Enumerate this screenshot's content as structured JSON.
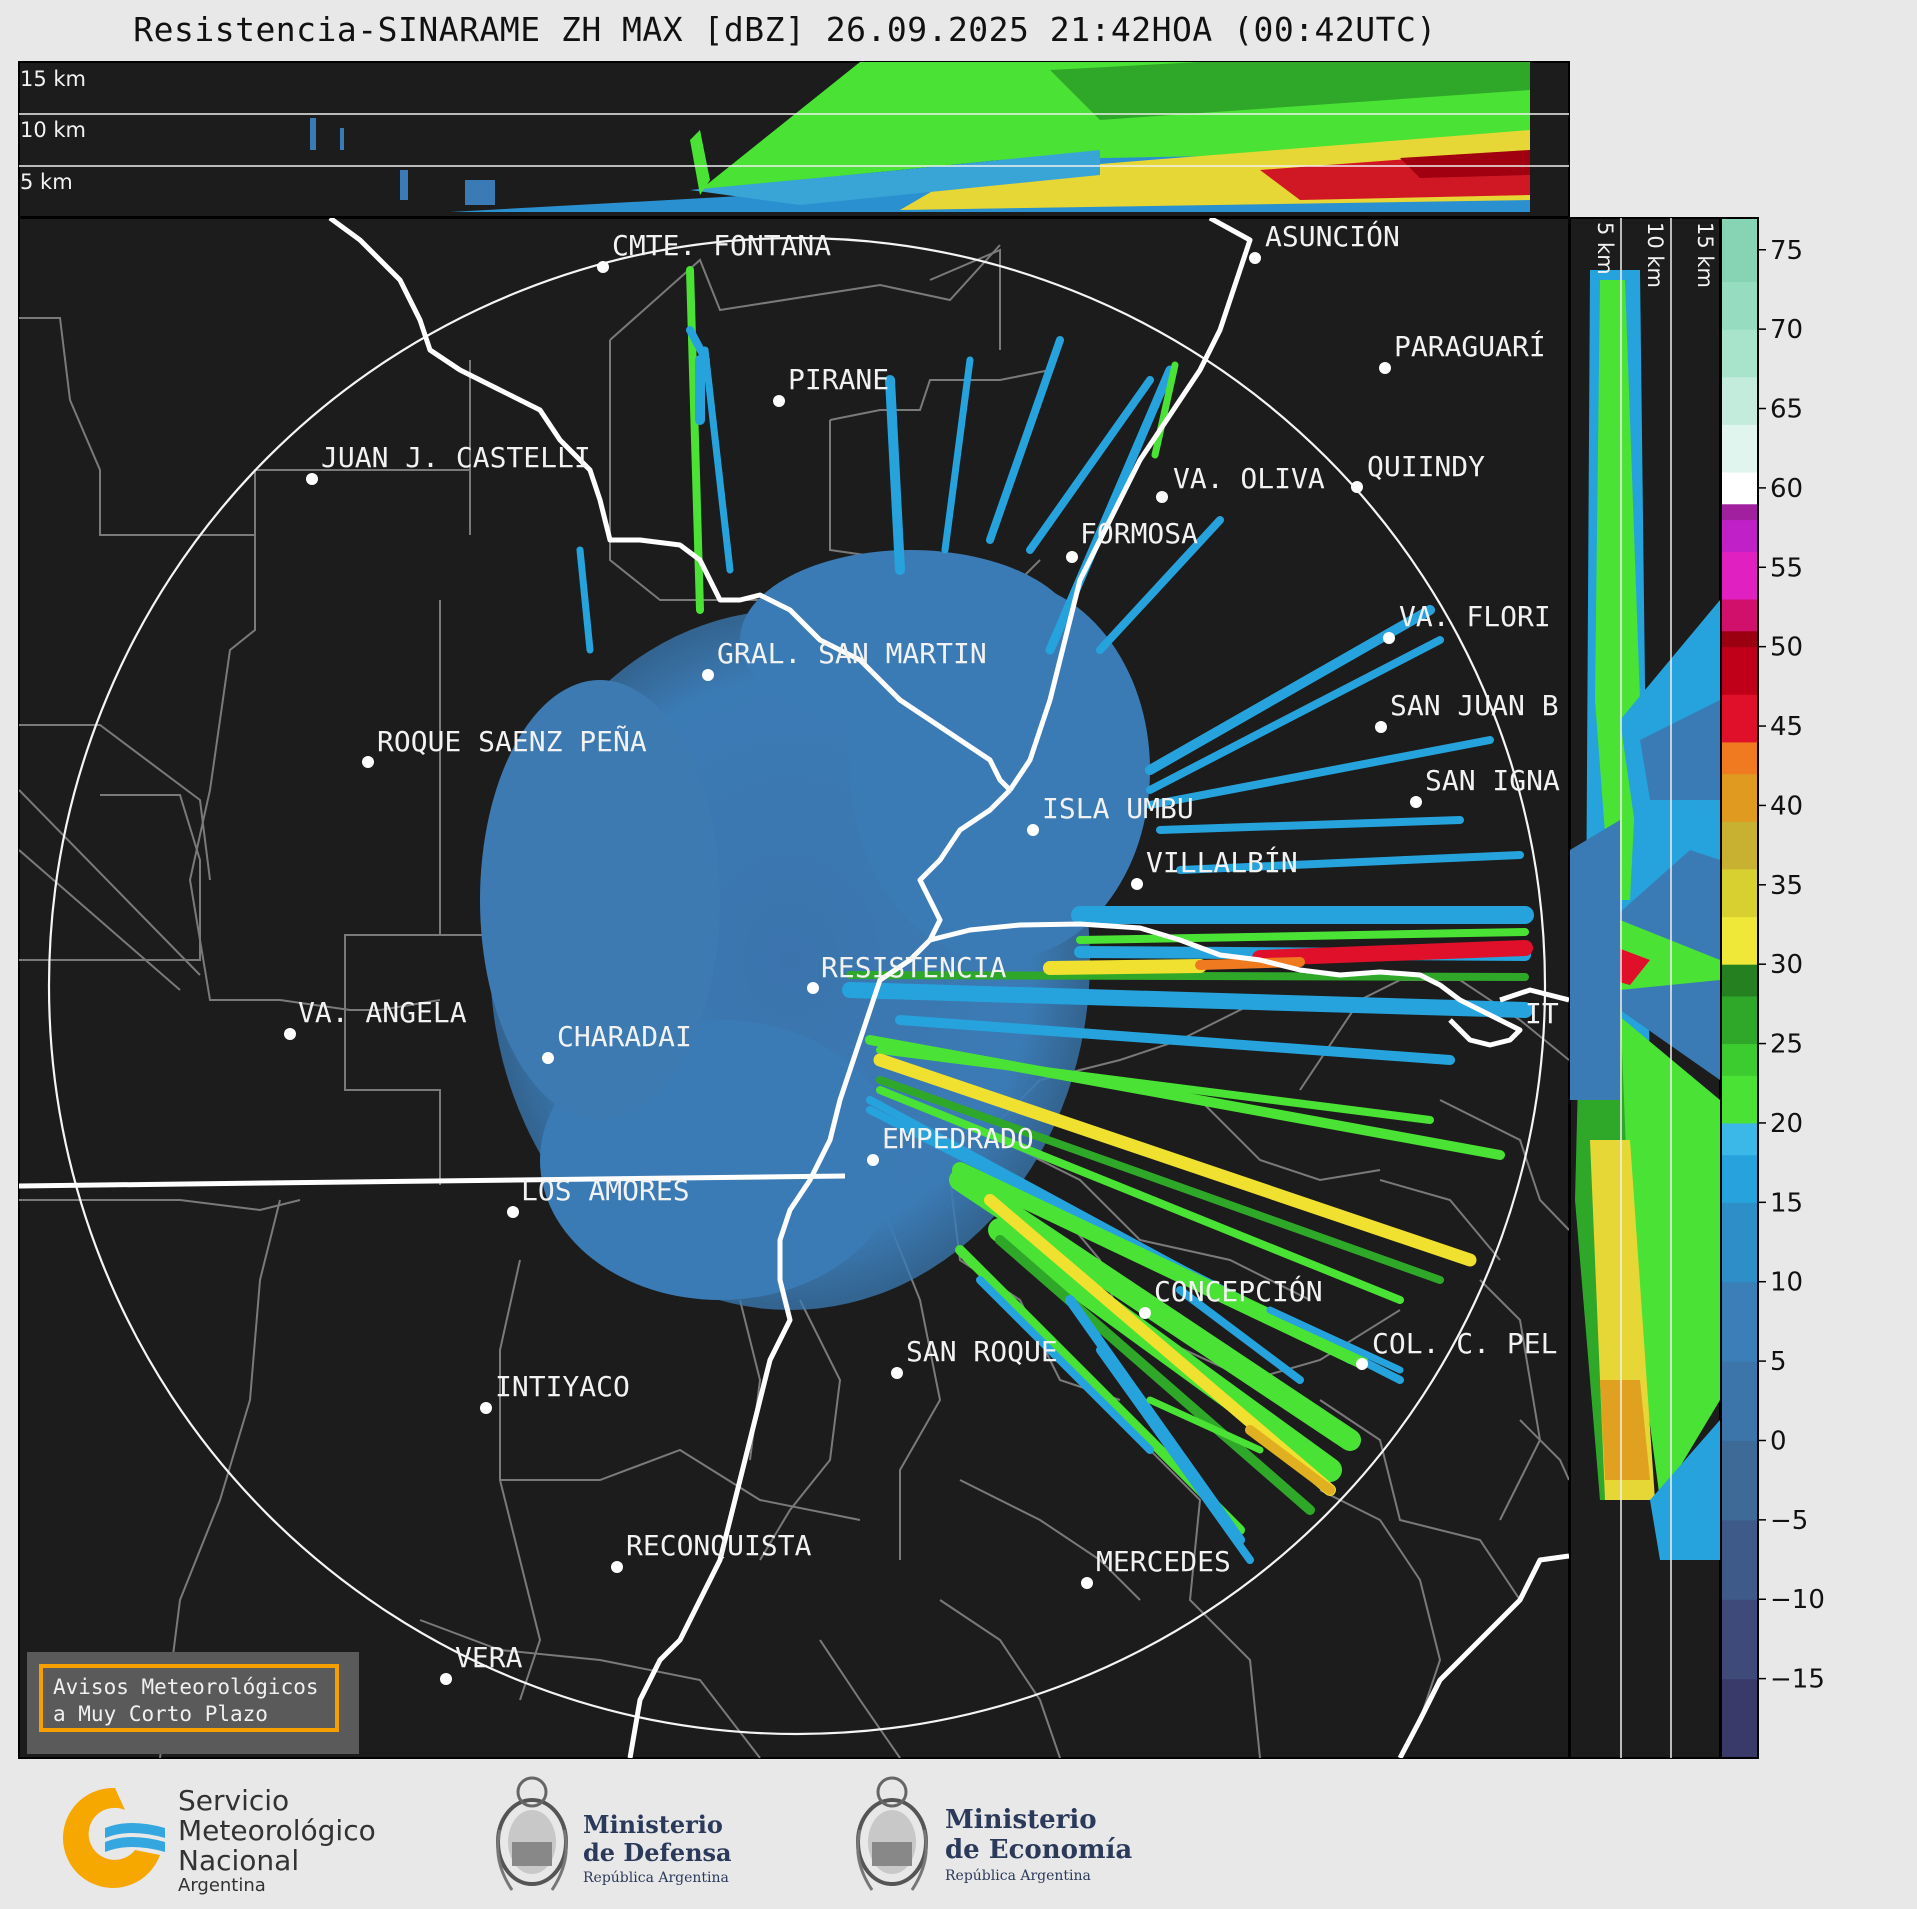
{
  "title": "Resistencia-SINARAME ZH MAX [dBZ] 26.09.2025 21:42HOA (00:42UTC)",
  "top_panel": {
    "height_labels": [
      "15 km",
      "10 km",
      "5 km"
    ]
  },
  "side_panel": {
    "height_labels": [
      "5 km",
      "10 km",
      "15 km"
    ]
  },
  "colorbar": {
    "unit": "dBZ",
    "ticks": [
      "75",
      "70",
      "65",
      "60",
      "55",
      "50",
      "45",
      "40",
      "35",
      "30",
      "25",
      "20",
      "15",
      "10",
      "5",
      "0",
      "−5",
      "−10",
      "−15"
    ]
  },
  "cities": [
    {
      "name": "CMTE. FONTANA",
      "id": "cmte-fontana"
    },
    {
      "name": "ASUNCIÓN",
      "id": "asuncion"
    },
    {
      "name": "PARAGUARÍ",
      "id": "paraguari"
    },
    {
      "name": "PIRANE",
      "id": "pirane"
    },
    {
      "name": "JUAN J. CASTELLI",
      "id": "juan-j-castelli"
    },
    {
      "name": "VA. OLIVA",
      "id": "va-oliva"
    },
    {
      "name": "QUIINDY",
      "id": "quiindy"
    },
    {
      "name": "FORMOSA",
      "id": "formosa"
    },
    {
      "name": "VA. FLORI",
      "id": "va-florida"
    },
    {
      "name": "GRAL. SAN MARTIN",
      "id": "gral-san-martin"
    },
    {
      "name": "SAN JUAN B",
      "id": "san-juan-b"
    },
    {
      "name": "ROQUE SAENZ PEÑA",
      "id": "roque-saenz-pena"
    },
    {
      "name": "SAN IGNA",
      "id": "san-ignacio"
    },
    {
      "name": "ISLA UMBU",
      "id": "isla-umbu"
    },
    {
      "name": "VILLALBÍN",
      "id": "villalbin"
    },
    {
      "name": "RESISTENCIA",
      "id": "resistencia"
    },
    {
      "name": "VA. ANGELA",
      "id": "va-angela"
    },
    {
      "name": "CHARADAI",
      "id": "charadai"
    },
    {
      "name": "IT",
      "id": "ituzaingo"
    },
    {
      "name": "EMPEDRADO",
      "id": "empedrado"
    },
    {
      "name": "LOS AMORES",
      "id": "los-amores"
    },
    {
      "name": "CONCEPCIÓN",
      "id": "concepcion"
    },
    {
      "name": "SAN ROQUE",
      "id": "san-roque"
    },
    {
      "name": "COL. C. PEL",
      "id": "col-c-pel"
    },
    {
      "name": "INTIYACO",
      "id": "intiyaco"
    },
    {
      "name": "RECONQUISTA",
      "id": "reconquista"
    },
    {
      "name": "MERCEDES",
      "id": "mercedes"
    },
    {
      "name": "VERA",
      "id": "vera"
    }
  ],
  "aviso": {
    "line1": "Avisos Meteorológicos",
    "line2": "a Muy Corto Plazo"
  },
  "footer": {
    "smn": {
      "line1": "Servicio",
      "line2": "Meteorológico",
      "line3": "Nacional",
      "line4": "Argentina"
    },
    "defensa": {
      "line1": "Ministerio",
      "line2": "de Defensa",
      "sub": "República Argentina"
    },
    "economia": {
      "line1": "Ministerio",
      "line2": "de Economía",
      "sub": "República Argentina"
    }
  },
  "colors": {
    "panel_bg": "#1c1c1c",
    "echo_blue": "#3b7bb5",
    "echo_cyan": "#26a3dc",
    "echo_green": "#4ae234",
    "echo_yellow": "#f0e030",
    "echo_red": "#e0102a",
    "aviso_border": "#f5a000"
  }
}
